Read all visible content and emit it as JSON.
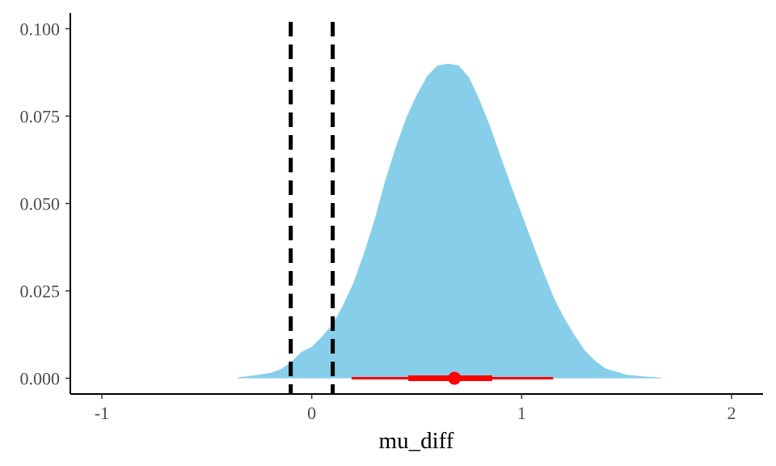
{
  "chart_data": {
    "type": "area",
    "title": "",
    "xlabel": "mu_diff",
    "ylabel": "",
    "xlim": [
      -1.15,
      2.15
    ],
    "ylim": [
      -0.0045,
      0.1045
    ],
    "x_ticks": [
      -1,
      0,
      1,
      2
    ],
    "x_tick_labels": [
      "-1",
      "0",
      "1",
      "2"
    ],
    "y_ticks": [
      0,
      0.025,
      0.05,
      0.075,
      0.1
    ],
    "y_tick_labels": [
      "0.000",
      "0.025",
      "0.050",
      "0.075",
      "0.100"
    ],
    "grid": false,
    "density": {
      "x": [
        -0.35,
        -0.3,
        -0.2,
        -0.15,
        -0.1,
        -0.05,
        0.0,
        0.05,
        0.1,
        0.15,
        0.2,
        0.25,
        0.3,
        0.35,
        0.4,
        0.45,
        0.5,
        0.55,
        0.6,
        0.65,
        0.7,
        0.75,
        0.8,
        0.85,
        0.9,
        0.95,
        1.0,
        1.05,
        1.1,
        1.15,
        1.2,
        1.25,
        1.3,
        1.35,
        1.4,
        1.5,
        1.6,
        1.67
      ],
      "y": [
        0.0003,
        0.0006,
        0.0015,
        0.0025,
        0.0045,
        0.0075,
        0.009,
        0.012,
        0.0155,
        0.021,
        0.0275,
        0.036,
        0.0455,
        0.0565,
        0.066,
        0.0745,
        0.081,
        0.0865,
        0.0895,
        0.09,
        0.0895,
        0.086,
        0.0795,
        0.072,
        0.0635,
        0.055,
        0.047,
        0.039,
        0.031,
        0.0235,
        0.0175,
        0.0125,
        0.008,
        0.005,
        0.0028,
        0.001,
        0.0004,
        0.0002
      ]
    },
    "reference_lines": [
      -0.1,
      0.1
    ],
    "point_interval": {
      "point": 0.68,
      "inner_interval": [
        0.46,
        0.86
      ],
      "outer_interval": [
        0.19,
        1.15
      ]
    },
    "colors": {
      "density_fill": "#87ceeb",
      "interval": "#ff0000",
      "reference_line": "#000000",
      "axis": "#000000",
      "tick_label": "#4d4d4d"
    }
  }
}
